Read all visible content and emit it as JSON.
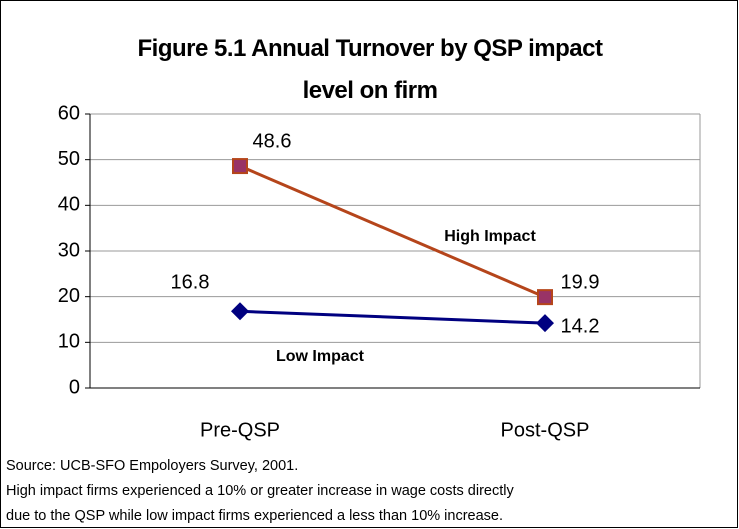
{
  "chart_data": {
    "type": "line",
    "title": "Figure 5.1  Annual Turnover by QSP impact level on firm",
    "categories": [
      "Pre-QSP",
      "Post-QSP"
    ],
    "series": [
      {
        "name": "High Impact",
        "color": "#b5451b",
        "marker": "square",
        "marker_color": "#993366",
        "values": [
          48.6,
          19.9
        ]
      },
      {
        "name": "Low Impact",
        "color": "#000080",
        "marker": "diamond",
        "marker_color": "#000080",
        "values": [
          16.8,
          14.2
        ]
      }
    ],
    "ylim": [
      0,
      60
    ],
    "yticks": [
      0,
      10,
      20,
      30,
      40,
      50,
      60
    ],
    "grid": true,
    "annotations": [
      "Source:  UCB-SFO Empoloyers Survey, 2001.",
      "High impact firms experienced a 10% or greater increase in wage costs directly",
      "due to the QSP while low impact firms experienced a less than 10% increase."
    ]
  }
}
